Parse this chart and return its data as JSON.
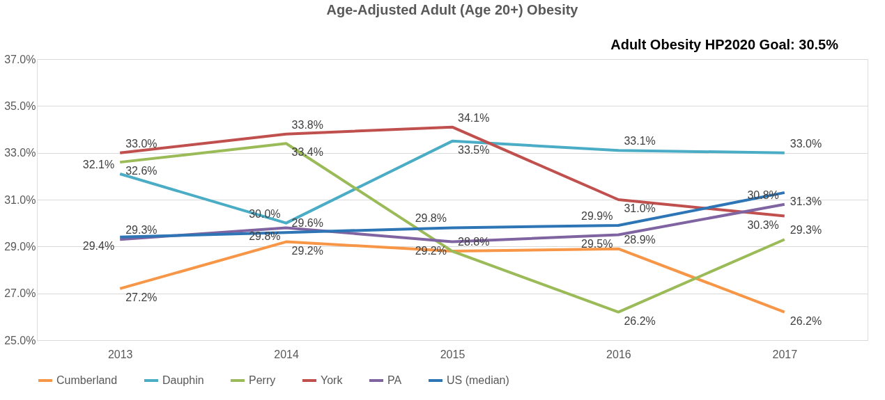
{
  "chart_data": {
    "type": "line",
    "title": "Age-Adjusted Adult (Age 20+) Obesity",
    "categories": [
      "2013",
      "2014",
      "2015",
      "2016",
      "2017"
    ],
    "series": [
      {
        "name": "Cumberland",
        "color": "#f79646",
        "values": [
          27.2,
          29.2,
          28.8,
          28.9,
          26.2
        ],
        "value_labels": [
          "27.2%",
          "29.2%",
          null,
          "28.9%",
          "26.2%"
        ]
      },
      {
        "name": "Dauphin",
        "color": "#4bacc6",
        "values": [
          32.1,
          30.0,
          33.5,
          33.1,
          33.0
        ],
        "value_labels": [
          "32.1%",
          "30.0%",
          "33.5%",
          "33.1%",
          "33.0%"
        ]
      },
      {
        "name": "Perry",
        "color": "#9bbb59",
        "values": [
          32.6,
          33.4,
          28.8,
          26.2,
          29.3
        ],
        "value_labels": [
          "32.6%",
          "33.4%",
          "28.8%",
          "26.2%",
          "29.3%"
        ]
      },
      {
        "name": "York",
        "color": "#c0504d",
        "values": [
          33.0,
          33.8,
          34.1,
          31.0,
          30.3
        ],
        "value_labels": [
          "33.0%",
          "33.8%",
          "34.1%",
          "31.0%",
          "30.3%"
        ]
      },
      {
        "name": "PA",
        "color": "#8064a2",
        "values": [
          29.3,
          29.8,
          29.2,
          29.5,
          30.8
        ],
        "value_labels": [
          "29.3%",
          "29.8%",
          "29.2%",
          "29.5%",
          "30.8%"
        ]
      },
      {
        "name": "US (median)",
        "color": "#2e75b6",
        "values": [
          29.4,
          29.6,
          29.8,
          29.9,
          31.3
        ],
        "value_labels": [
          "29.4%",
          "29.6%",
          "29.8%",
          "29.9%",
          "31.3%"
        ]
      }
    ],
    "ylim": [
      25,
      37
    ],
    "yticks": [
      {
        "value": 25,
        "label": "25.0%"
      },
      {
        "value": 27,
        "label": "27.0%"
      },
      {
        "value": 29,
        "label": "29.0%"
      },
      {
        "value": 31,
        "label": "31.0%"
      },
      {
        "value": 33,
        "label": "33.0%"
      },
      {
        "value": 35,
        "label": "35.0%"
      },
      {
        "value": 37,
        "label": "37.0%"
      }
    ],
    "grid": "y",
    "legend": "bottom",
    "marker": "none",
    "line_style": "solid",
    "annotations": [
      "Adult Obesity HP2020 Goal: 30.5%"
    ]
  }
}
